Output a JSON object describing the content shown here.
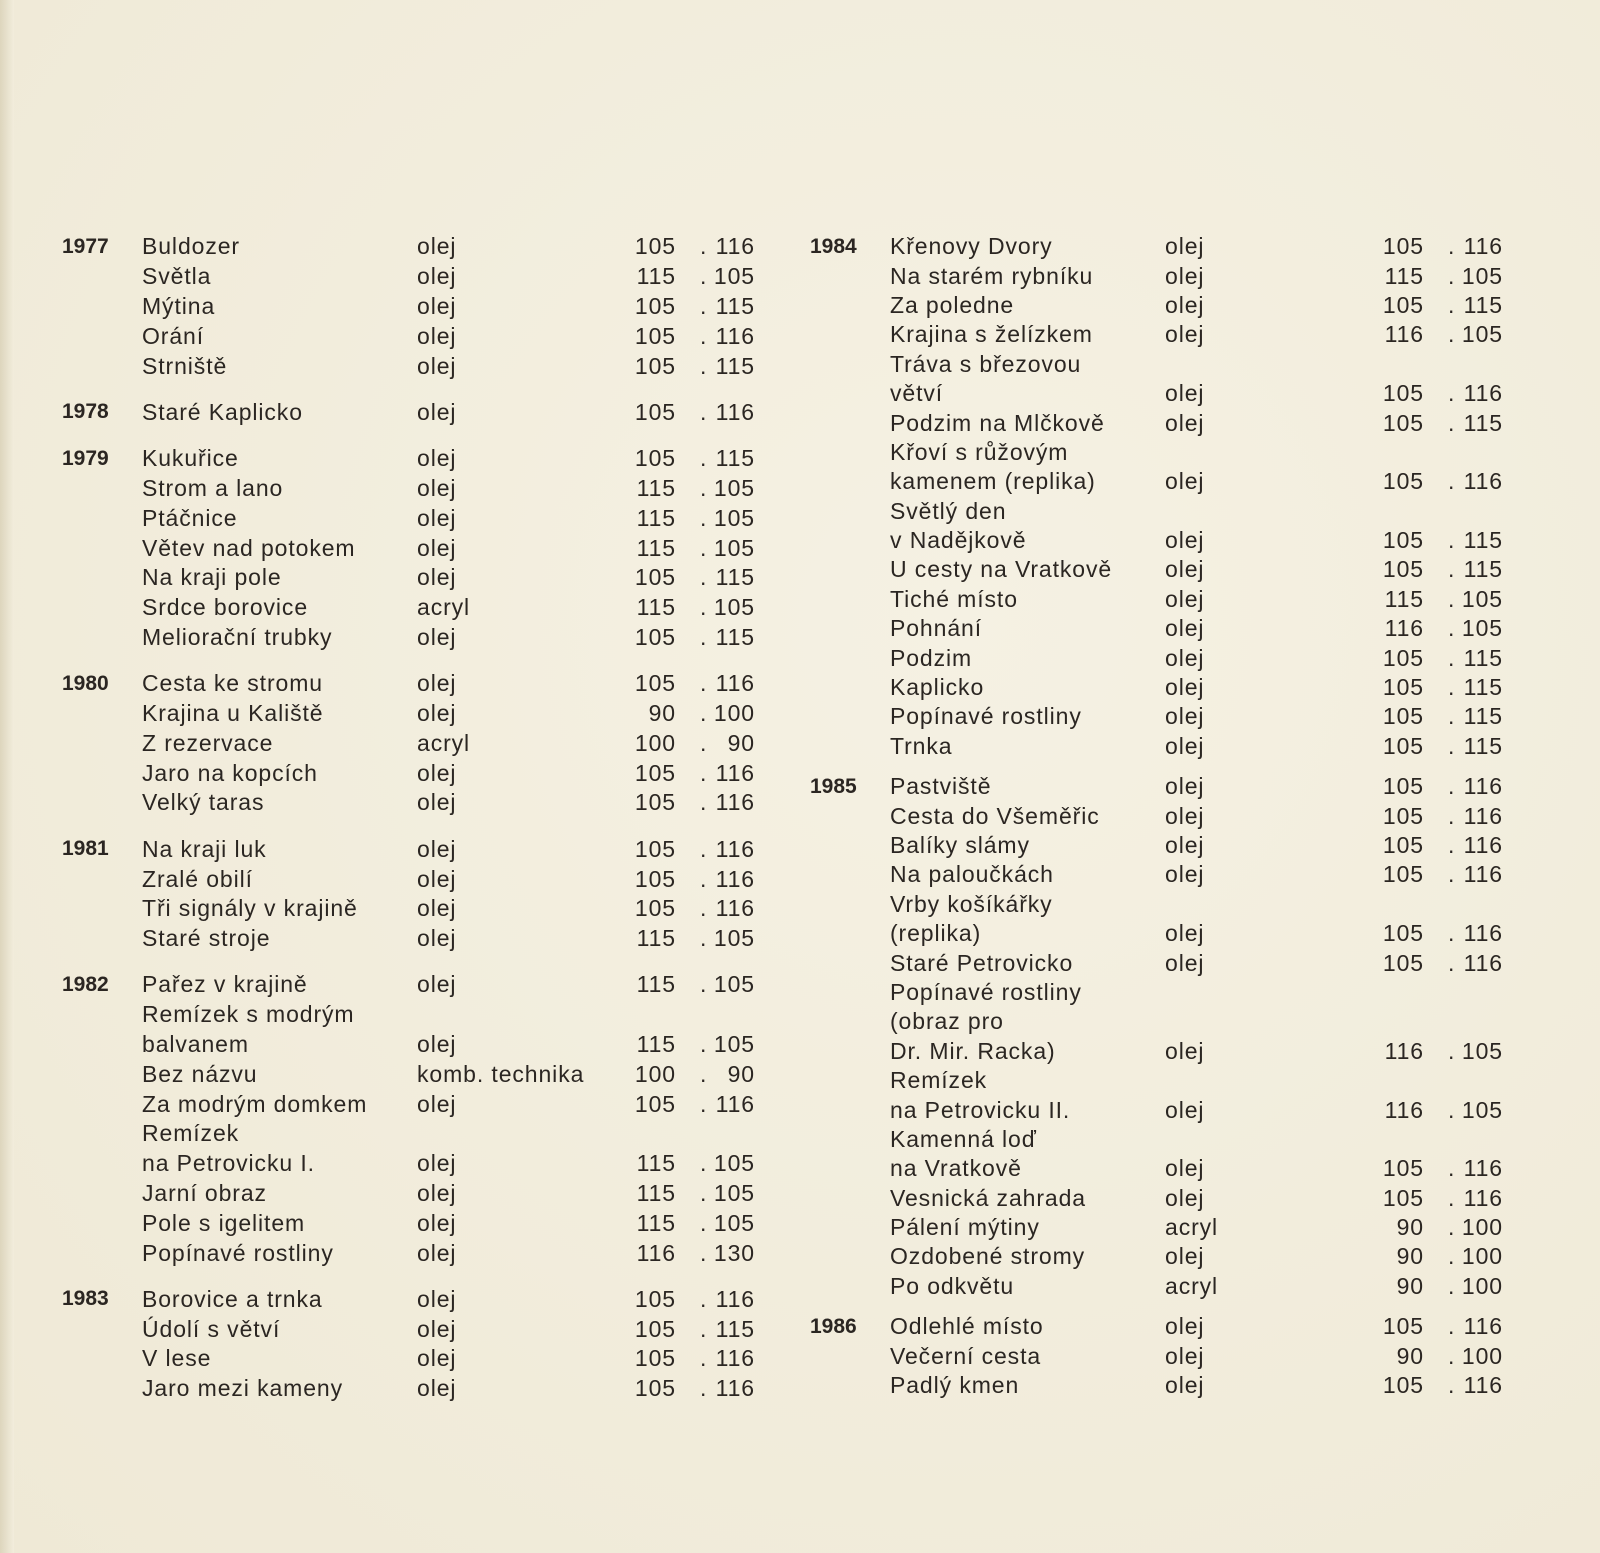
{
  "catalog": {
    "dimension_separator": ".",
    "columns": [
      {
        "groups": [
          {
            "year": "1977",
            "entries": [
              {
                "title": [
                  "Buldozer"
                ],
                "medium": "olej",
                "w": "105",
                "h": "116"
              },
              {
                "title": [
                  "Světla"
                ],
                "medium": "olej",
                "w": "115",
                "h": "105"
              },
              {
                "title": [
                  "Mýtina"
                ],
                "medium": "olej",
                "w": "105",
                "h": "115"
              },
              {
                "title": [
                  "Orání"
                ],
                "medium": "olej",
                "w": "105",
                "h": "116"
              },
              {
                "title": [
                  "Strniště"
                ],
                "medium": "olej",
                "w": "105",
                "h": "115"
              }
            ]
          },
          {
            "year": "1978",
            "entries": [
              {
                "title": [
                  "Staré Kaplicko"
                ],
                "medium": "olej",
                "w": "105",
                "h": "116"
              }
            ]
          },
          {
            "year": "1979",
            "entries": [
              {
                "title": [
                  "Kukuřice"
                ],
                "medium": "olej",
                "w": "105",
                "h": "115"
              },
              {
                "title": [
                  "Strom a lano"
                ],
                "medium": "olej",
                "w": "115",
                "h": "105"
              },
              {
                "title": [
                  "Ptáčnice"
                ],
                "medium": "olej",
                "w": "115",
                "h": "105"
              },
              {
                "title": [
                  "Větev nad potokem"
                ],
                "medium": "olej",
                "w": "115",
                "h": "105"
              },
              {
                "title": [
                  "Na kraji pole"
                ],
                "medium": "olej",
                "w": "105",
                "h": "115"
              },
              {
                "title": [
                  "Srdce borovice"
                ],
                "medium": "acryl",
                "w": "115",
                "h": "105"
              },
              {
                "title": [
                  "Meliorační trubky"
                ],
                "medium": "olej",
                "w": "105",
                "h": "115"
              }
            ]
          },
          {
            "year": "1980",
            "entries": [
              {
                "title": [
                  "Cesta ke stromu"
                ],
                "medium": "olej",
                "w": "105",
                "h": "116"
              },
              {
                "title": [
                  "Krajina u Kaliště"
                ],
                "medium": "olej",
                "w": "90",
                "h": "100"
              },
              {
                "title": [
                  "Z rezervace"
                ],
                "medium": "acryl",
                "w": "100",
                "h": "90"
              },
              {
                "title": [
                  "Jaro na kopcích"
                ],
                "medium": "olej",
                "w": "105",
                "h": "116"
              },
              {
                "title": [
                  "Velký taras"
                ],
                "medium": "olej",
                "w": "105",
                "h": "116"
              }
            ]
          },
          {
            "year": "1981",
            "entries": [
              {
                "title": [
                  "Na kraji luk"
                ],
                "medium": "olej",
                "w": "105",
                "h": "116"
              },
              {
                "title": [
                  "Zralé obilí"
                ],
                "medium": "olej",
                "w": "105",
                "h": "116"
              },
              {
                "title": [
                  "Tři signály v krajině"
                ],
                "medium": "olej",
                "w": "105",
                "h": "116"
              },
              {
                "title": [
                  "Staré stroje"
                ],
                "medium": "olej",
                "w": "115",
                "h": "105"
              }
            ]
          },
          {
            "year": "1982",
            "entries": [
              {
                "title": [
                  "Pařez v krajině"
                ],
                "medium": "olej",
                "w": "115",
                "h": "105"
              },
              {
                "title": [
                  "Remízek s modrým",
                  "balvanem"
                ],
                "medium": "olej",
                "w": "115",
                "h": "105"
              },
              {
                "title": [
                  "Bez názvu"
                ],
                "medium": "komb. technika",
                "w": "100",
                "h": "90"
              },
              {
                "title": [
                  "Za modrým domkem"
                ],
                "medium": "olej",
                "w": "105",
                "h": "116"
              },
              {
                "title": [
                  "Remízek",
                  "na Petrovicku I."
                ],
                "medium": "olej",
                "w": "115",
                "h": "105"
              },
              {
                "title": [
                  "Jarní obraz"
                ],
                "medium": "olej",
                "w": "115",
                "h": "105"
              },
              {
                "title": [
                  "Pole s igelitem"
                ],
                "medium": "olej",
                "w": "115",
                "h": "105"
              },
              {
                "title": [
                  "Popínavé rostliny"
                ],
                "medium": "olej",
                "w": "116",
                "h": "130"
              }
            ]
          },
          {
            "year": "1983",
            "entries": [
              {
                "title": [
                  "Borovice a trnka"
                ],
                "medium": "olej",
                "w": "105",
                "h": "116"
              },
              {
                "title": [
                  "Údolí s větví"
                ],
                "medium": "olej",
                "w": "105",
                "h": "115"
              },
              {
                "title": [
                  "V lese"
                ],
                "medium": "olej",
                "w": "105",
                "h": "116"
              },
              {
                "title": [
                  "Jaro mezi kameny"
                ],
                "medium": "olej",
                "w": "105",
                "h": "116"
              }
            ]
          }
        ]
      },
      {
        "groups": [
          {
            "year": "1984",
            "entries": [
              {
                "title": [
                  "Křenovy Dvory"
                ],
                "medium": "olej",
                "w": "105",
                "h": "116"
              },
              {
                "title": [
                  "Na starém rybníku"
                ],
                "medium": "olej",
                "w": "115",
                "h": "105"
              },
              {
                "title": [
                  "Za poledne"
                ],
                "medium": "olej",
                "w": "105",
                "h": "115"
              },
              {
                "title": [
                  "Krajina s želízkem"
                ],
                "medium": "olej",
                "w": "116",
                "h": "105"
              },
              {
                "title": [
                  "Tráva s březovou",
                  "větví"
                ],
                "medium": "olej",
                "w": "105",
                "h": "116"
              },
              {
                "title": [
                  "Podzim na Mlčkově"
                ],
                "medium": "olej",
                "w": "105",
                "h": "115"
              },
              {
                "title": [
                  "Křoví s růžovým",
                  "kamenem (replika)"
                ],
                "medium": "olej",
                "w": "105",
                "h": "116"
              },
              {
                "title": [
                  "Světlý den",
                  "v Nadějkově"
                ],
                "medium": "olej",
                "w": "105",
                "h": "115"
              },
              {
                "title": [
                  "U cesty na Vratkově"
                ],
                "medium": "olej",
                "w": "105",
                "h": "115"
              },
              {
                "title": [
                  "Tiché místo"
                ],
                "medium": "olej",
                "w": "115",
                "h": "105"
              },
              {
                "title": [
                  "Pohnání"
                ],
                "medium": "olej",
                "w": "116",
                "h": "105"
              },
              {
                "title": [
                  "Podzim"
                ],
                "medium": "olej",
                "w": "105",
                "h": "115"
              },
              {
                "title": [
                  "Kaplicko"
                ],
                "medium": "olej",
                "w": "105",
                "h": "115"
              },
              {
                "title": [
                  "Popínavé rostliny"
                ],
                "medium": "olej",
                "w": "105",
                "h": "115"
              },
              {
                "title": [
                  "Trnka"
                ],
                "medium": "olej",
                "w": "105",
                "h": "115"
              }
            ]
          },
          {
            "year": "1985",
            "entries": [
              {
                "title": [
                  "Pastviště"
                ],
                "medium": "olej",
                "w": "105",
                "h": "116"
              },
              {
                "title": [
                  "Cesta do Všeměřic"
                ],
                "medium": "olej",
                "w": "105",
                "h": "116"
              },
              {
                "title": [
                  "Balíky slámy"
                ],
                "medium": "olej",
                "w": "105",
                "h": "116"
              },
              {
                "title": [
                  "Na paloučkách"
                ],
                "medium": "olej",
                "w": "105",
                "h": "116"
              },
              {
                "title": [
                  "Vrby košíkářky",
                  "(replika)"
                ],
                "medium": "olej",
                "w": "105",
                "h": "116"
              },
              {
                "title": [
                  "Staré Petrovicko"
                ],
                "medium": "olej",
                "w": "105",
                "h": "116"
              },
              {
                "title": [
                  "Popínavé rostliny",
                  "(obraz pro",
                  "Dr. Mir. Racka)"
                ],
                "medium": "olej",
                "w": "116",
                "h": "105"
              },
              {
                "title": [
                  "Remízek",
                  "na Petrovicku II."
                ],
                "medium": "olej",
                "w": "116",
                "h": "105"
              },
              {
                "title": [
                  "Kamenná loď",
                  "na Vratkově"
                ],
                "medium": "olej",
                "w": "105",
                "h": "116"
              },
              {
                "title": [
                  "Vesnická zahrada"
                ],
                "medium": "olej",
                "w": "105",
                "h": "116"
              },
              {
                "title": [
                  "Pálení mýtiny"
                ],
                "medium": "acryl",
                "w": "90",
                "h": "100"
              },
              {
                "title": [
                  "Ozdobené stromy"
                ],
                "medium": "olej",
                "w": "90",
                "h": "100"
              },
              {
                "title": [
                  "Po odkvětu"
                ],
                "medium": "acryl",
                "w": "90",
                "h": "100"
              }
            ]
          },
          {
            "year": "1986",
            "entries": [
              {
                "title": [
                  "Odlehlé místo"
                ],
                "medium": "olej",
                "w": "105",
                "h": "116"
              },
              {
                "title": [
                  "Večerní cesta"
                ],
                "medium": "olej",
                "w": "90",
                "h": "100"
              },
              {
                "title": [
                  "Padlý kmen"
                ],
                "medium": "olej",
                "w": "105",
                "h": "116"
              }
            ]
          }
        ]
      }
    ]
  }
}
